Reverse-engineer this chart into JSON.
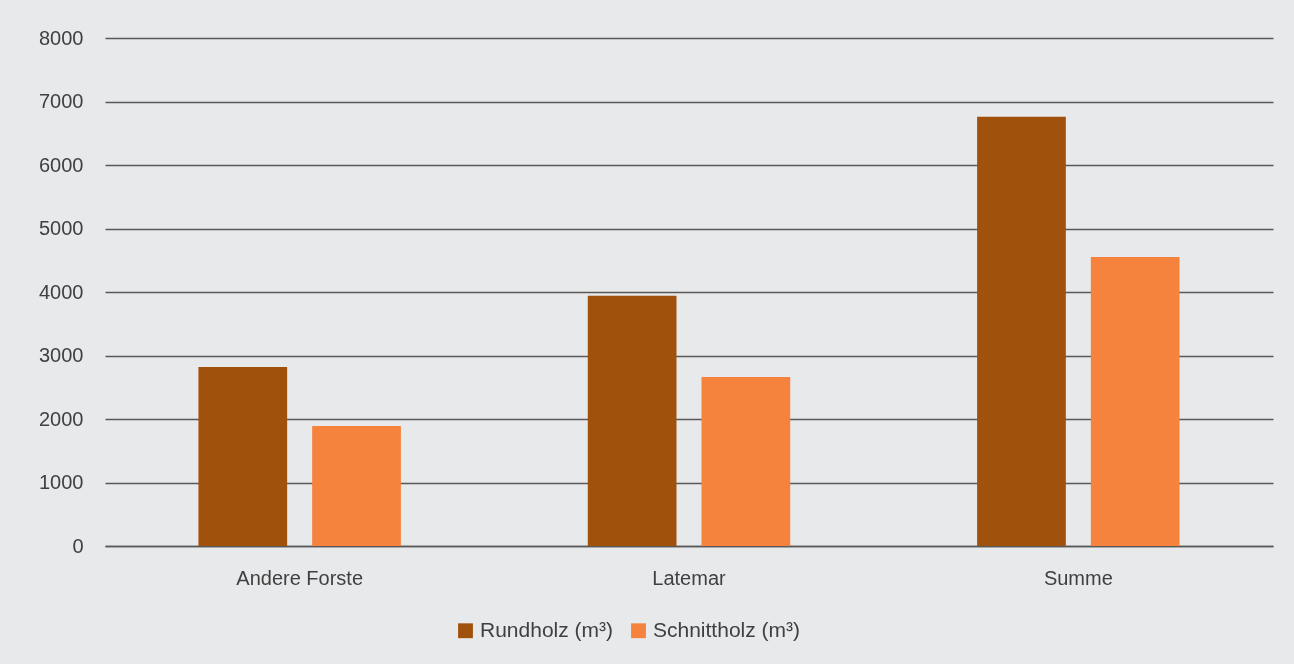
{
  "chart_data": {
    "type": "bar",
    "categories": [
      "Andere Forste",
      "Latemar",
      "Summe"
    ],
    "series": [
      {
        "name": "Rundholz (m³)",
        "color": "#a0510b",
        "values": [
          2820,
          3940,
          6760
        ]
      },
      {
        "name": "Schnittholz (m³)",
        "color": "#f5823d",
        "values": [
          1890,
          2660,
          4550
        ]
      }
    ],
    "ylim": [
      0,
      8000
    ],
    "yticks": [
      0,
      1000,
      2000,
      3000,
      4000,
      5000,
      6000,
      7000,
      8000
    ],
    "grid": "y",
    "legend": "bottom"
  }
}
